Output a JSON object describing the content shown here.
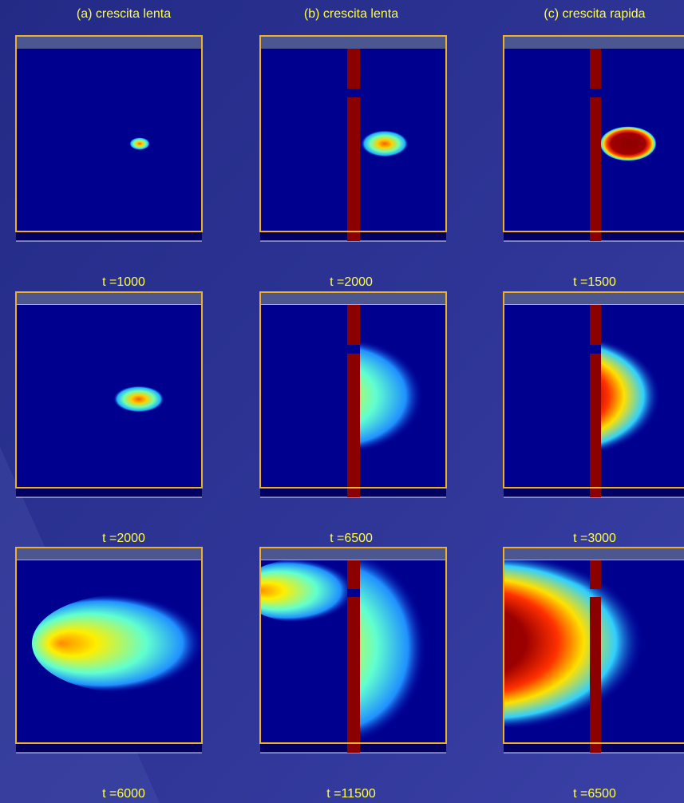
{
  "columns": [
    "(a) crescita lenta",
    "(b) crescita lenta",
    "(c) crescita rapida"
  ],
  "rows": [
    [
      "t =1000",
      "t =2000",
      "t =1500"
    ],
    [
      "t =2000",
      "t =6500",
      "t =3000"
    ],
    [
      "t =6000",
      "t =11500",
      "t =6500"
    ]
  ]
}
